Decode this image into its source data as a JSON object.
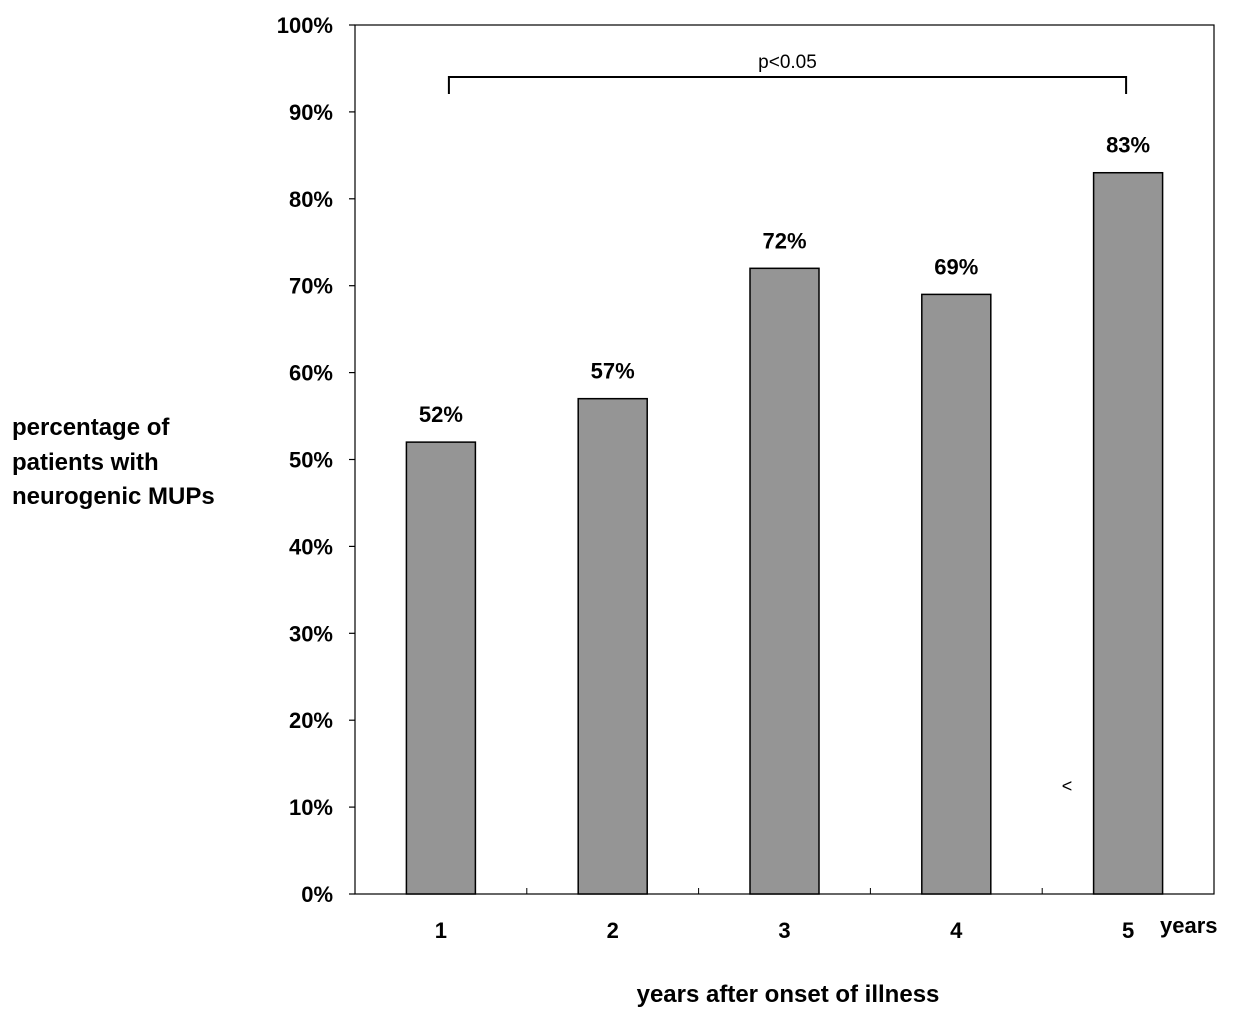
{
  "chart_data": {
    "type": "bar",
    "categories": [
      "1",
      "2",
      "3",
      "4",
      "5"
    ],
    "values": [
      52,
      57,
      72,
      69,
      83
    ],
    "data_labels": [
      "52%",
      "57%",
      "72%",
      "69%",
      "83%"
    ],
    "ylabel_lines": [
      "percentage of",
      "patients with",
      "neurogenic MUPs"
    ],
    "xlabel": "years after onset of illness",
    "x_unit": "years",
    "ylim": [
      0,
      100
    ],
    "y_ticks": [
      0,
      10,
      20,
      30,
      40,
      50,
      60,
      70,
      80,
      90,
      100
    ],
    "y_tick_labels": [
      "0%",
      "10%",
      "20%",
      "30%",
      "40%",
      "50%",
      "60%",
      "70%",
      "80%",
      "90%",
      "100%"
    ],
    "grid": false,
    "bar_color": "#959595",
    "significance": {
      "label": "p<0.05",
      "from_category": "1",
      "to_category": "5"
    },
    "stray_mark": "<"
  }
}
